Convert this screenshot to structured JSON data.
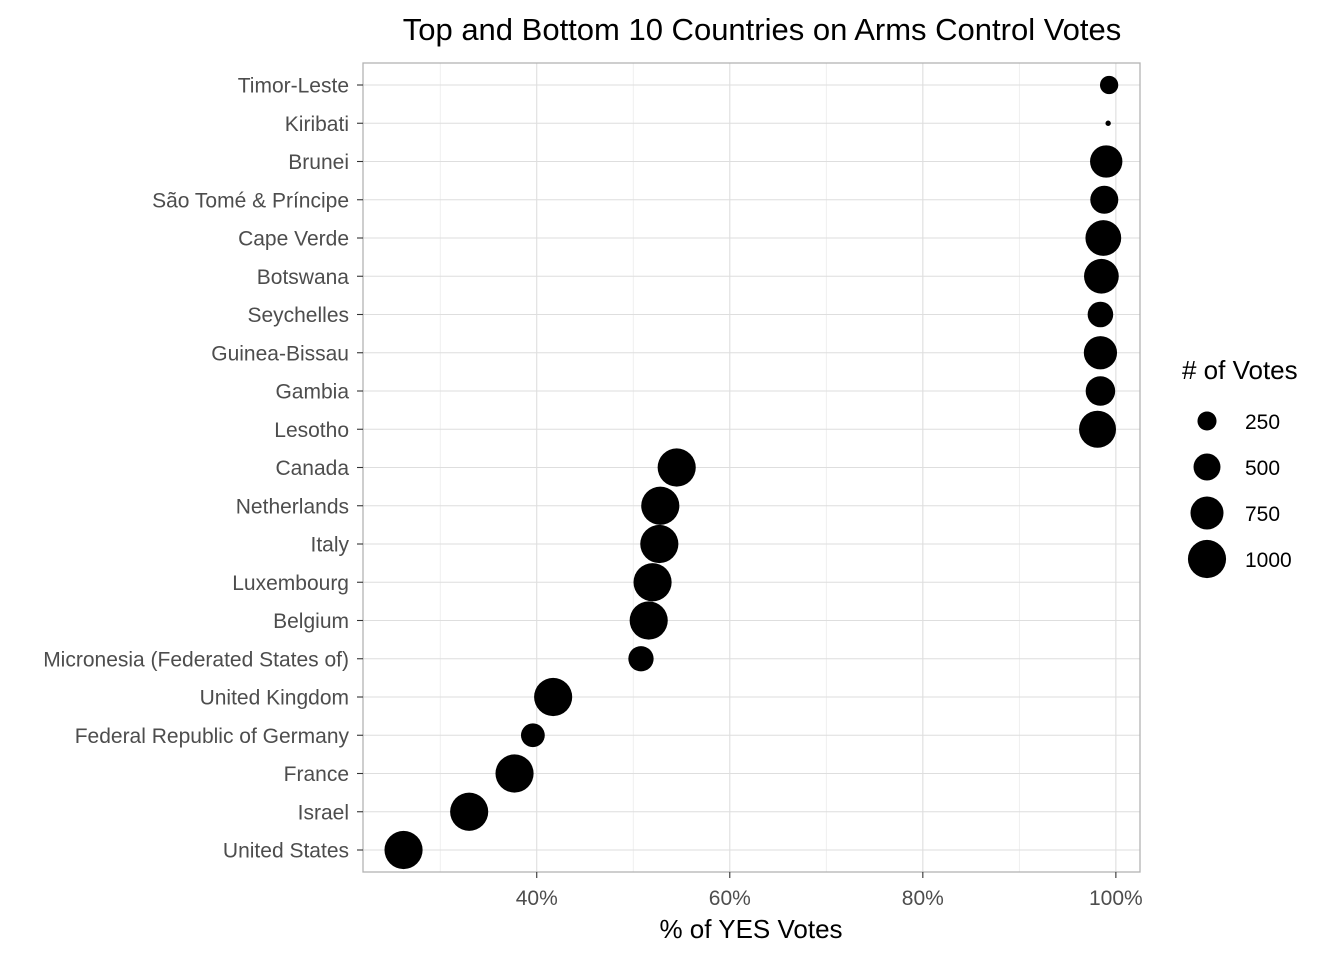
{
  "chart_data": {
    "type": "scatter",
    "title": "Top and Bottom 10 Countries on Arms Control Votes",
    "xlabel": "% of YES Votes",
    "ylabel": "",
    "xlim": [
      0.22,
      1.025
    ],
    "x_ticks": [
      {
        "value": 0.4,
        "label": "40%"
      },
      {
        "value": 0.6,
        "label": "60%"
      },
      {
        "value": 0.8,
        "label": "80%"
      },
      {
        "value": 1.0,
        "label": "100%"
      }
    ],
    "grid": true,
    "legend": {
      "title": "# of Votes",
      "placement": "right",
      "entries": [
        {
          "value": 250,
          "label": "250"
        },
        {
          "value": 500,
          "label": "500"
        },
        {
          "value": 750,
          "label": "750"
        },
        {
          "value": 1000,
          "label": "1000"
        }
      ]
    },
    "size_range": [
      0,
      1100
    ],
    "points": [
      {
        "country": "Timor-Leste",
        "pct_yes": 0.993,
        "votes": 230
      },
      {
        "country": "Kiribati",
        "pct_yes": 0.992,
        "votes": 20
      },
      {
        "country": "Brunei",
        "pct_yes": 0.99,
        "votes": 720
      },
      {
        "country": "São Tomé & Príncipe",
        "pct_yes": 0.988,
        "votes": 540
      },
      {
        "country": "Cape Verde",
        "pct_yes": 0.987,
        "votes": 880
      },
      {
        "country": "Botswana",
        "pct_yes": 0.985,
        "votes": 830
      },
      {
        "country": "Seychelles",
        "pct_yes": 0.984,
        "votes": 450
      },
      {
        "country": "Guinea-Bissau",
        "pct_yes": 0.984,
        "votes": 760
      },
      {
        "country": "Gambia",
        "pct_yes": 0.984,
        "votes": 600
      },
      {
        "country": "Lesotho",
        "pct_yes": 0.981,
        "votes": 940
      },
      {
        "country": "Canada",
        "pct_yes": 0.545,
        "votes": 1000
      },
      {
        "country": "Netherlands",
        "pct_yes": 0.528,
        "votes": 1000
      },
      {
        "country": "Italy",
        "pct_yes": 0.527,
        "votes": 1000
      },
      {
        "country": "Luxembourg",
        "pct_yes": 0.52,
        "votes": 1000
      },
      {
        "country": "Belgium",
        "pct_yes": 0.516,
        "votes": 1000
      },
      {
        "country": "Micronesia (Federated States of)",
        "pct_yes": 0.508,
        "votes": 440
      },
      {
        "country": "United Kingdom",
        "pct_yes": 0.417,
        "votes": 1000
      },
      {
        "country": "Federal Republic of Germany",
        "pct_yes": 0.396,
        "votes": 390
      },
      {
        "country": "France",
        "pct_yes": 0.377,
        "votes": 1000
      },
      {
        "country": "Israel",
        "pct_yes": 0.33,
        "votes": 1000
      },
      {
        "country": "United States",
        "pct_yes": 0.262,
        "votes": 1000
      }
    ]
  }
}
